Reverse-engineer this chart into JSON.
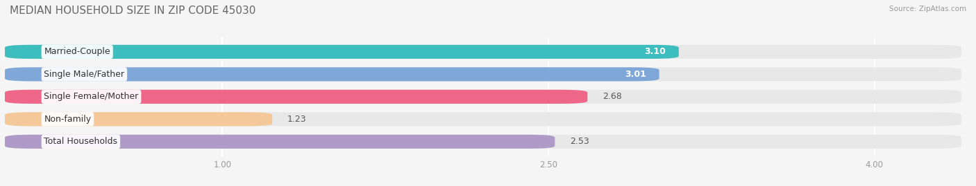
{
  "title": "MEDIAN HOUSEHOLD SIZE IN ZIP CODE 45030",
  "source": "Source: ZipAtlas.com",
  "categories": [
    "Married-Couple",
    "Single Male/Father",
    "Single Female/Mother",
    "Non-family",
    "Total Households"
  ],
  "values": [
    3.1,
    3.01,
    2.68,
    1.23,
    2.53
  ],
  "bar_colors": [
    "#3DBDBD",
    "#7FA8D8",
    "#EE6688",
    "#F5C89A",
    "#B09AC8"
  ],
  "bg_bar_color": "#E8E8E8",
  "xlim": [
    0.0,
    4.4
  ],
  "xstart": 0.0,
  "data_min": 1.0,
  "data_max": 4.0,
  "xticks": [
    1.0,
    2.5,
    4.0
  ],
  "xtick_labels": [
    "1.00",
    "2.50",
    "4.00"
  ],
  "title_fontsize": 11,
  "label_fontsize": 9,
  "value_fontsize": 9,
  "bar_height": 0.62,
  "background_color": "#F5F5F5",
  "value_colors": [
    "white",
    "white",
    "#555555",
    "#555555",
    "#555555"
  ]
}
